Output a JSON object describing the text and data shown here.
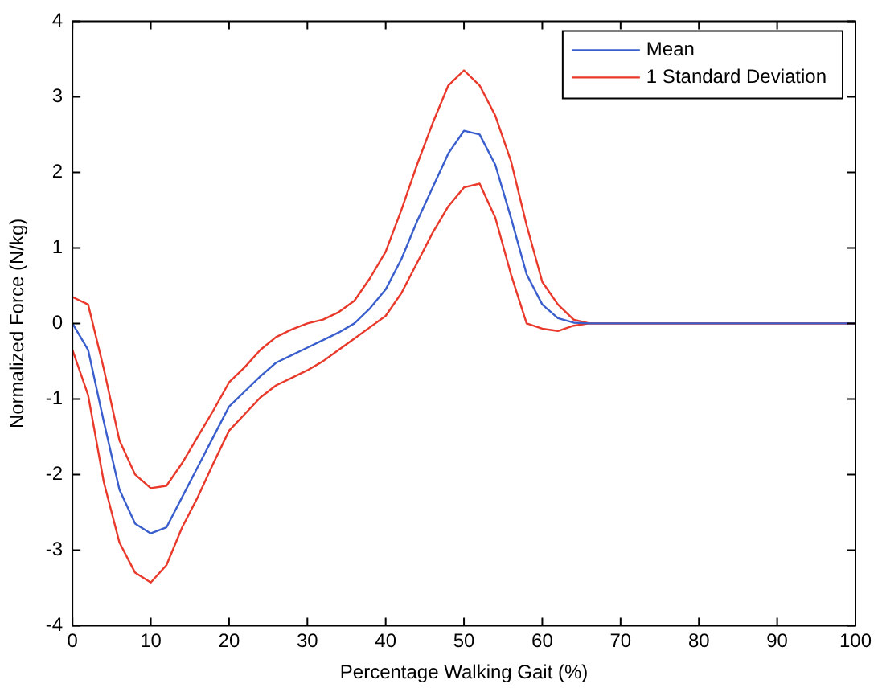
{
  "chart_data": {
    "type": "line",
    "xlabel": "Percentage Walking Gait (%)",
    "ylabel": "Normalized Force (N/kg)",
    "x": [
      0,
      2,
      4,
      6,
      8,
      10,
      12,
      14,
      16,
      18,
      20,
      22,
      24,
      26,
      28,
      30,
      32,
      34,
      36,
      38,
      40,
      42,
      44,
      46,
      48,
      50,
      52,
      54,
      56,
      58,
      60,
      62,
      64,
      66,
      100
    ],
    "series": [
      {
        "name": "Mean",
        "color": "#3a5fcd",
        "values": [
          0,
          -0.35,
          -1.3,
          -2.2,
          -2.65,
          -2.78,
          -2.7,
          -2.3,
          -1.9,
          -1.5,
          -1.1,
          -0.9,
          -0.7,
          -0.52,
          -0.42,
          -0.32,
          -0.22,
          -0.12,
          0,
          0.2,
          0.45,
          0.85,
          1.35,
          1.8,
          2.25,
          2.55,
          2.5,
          2.1,
          1.4,
          0.65,
          0.25,
          0.07,
          0.01,
          0,
          0
        ]
      },
      {
        "name": "1 Standard Deviation",
        "color": "#e8392b",
        "values": [
          0.35,
          0.25,
          -0.6,
          -1.55,
          -2.0,
          -2.18,
          -2.15,
          -1.85,
          -1.5,
          -1.15,
          -0.78,
          -0.58,
          -0.35,
          -0.18,
          -0.08,
          0,
          0.05,
          0.15,
          0.3,
          0.6,
          0.95,
          1.5,
          2.1,
          2.65,
          3.15,
          3.35,
          3.15,
          2.75,
          2.15,
          1.3,
          0.55,
          0.25,
          0.05,
          0,
          0
        ]
      },
      {
        "color": "#e8392b",
        "values": [
          -0.35,
          -0.95,
          -2.1,
          -2.9,
          -3.3,
          -3.43,
          -3.2,
          -2.7,
          -2.3,
          -1.85,
          -1.42,
          -1.2,
          -0.98,
          -0.82,
          -0.72,
          -0.62,
          -0.5,
          -0.35,
          -0.2,
          -0.05,
          0.1,
          0.4,
          0.8,
          1.2,
          1.55,
          1.8,
          1.85,
          1.4,
          0.65,
          0,
          -0.07,
          -0.1,
          -0.03,
          0,
          0
        ]
      }
    ],
    "xlim": [
      0,
      100
    ],
    "xticks": [
      0,
      10,
      20,
      30,
      40,
      50,
      60,
      70,
      80,
      90,
      100
    ],
    "ylim": [
      -4,
      4
    ],
    "yticks": [
      -4,
      -3,
      -2,
      -1,
      0,
      1,
      2,
      3,
      4
    ],
    "grid": false,
    "legend": "top right",
    "marker": "none",
    "line_style": "solid"
  }
}
